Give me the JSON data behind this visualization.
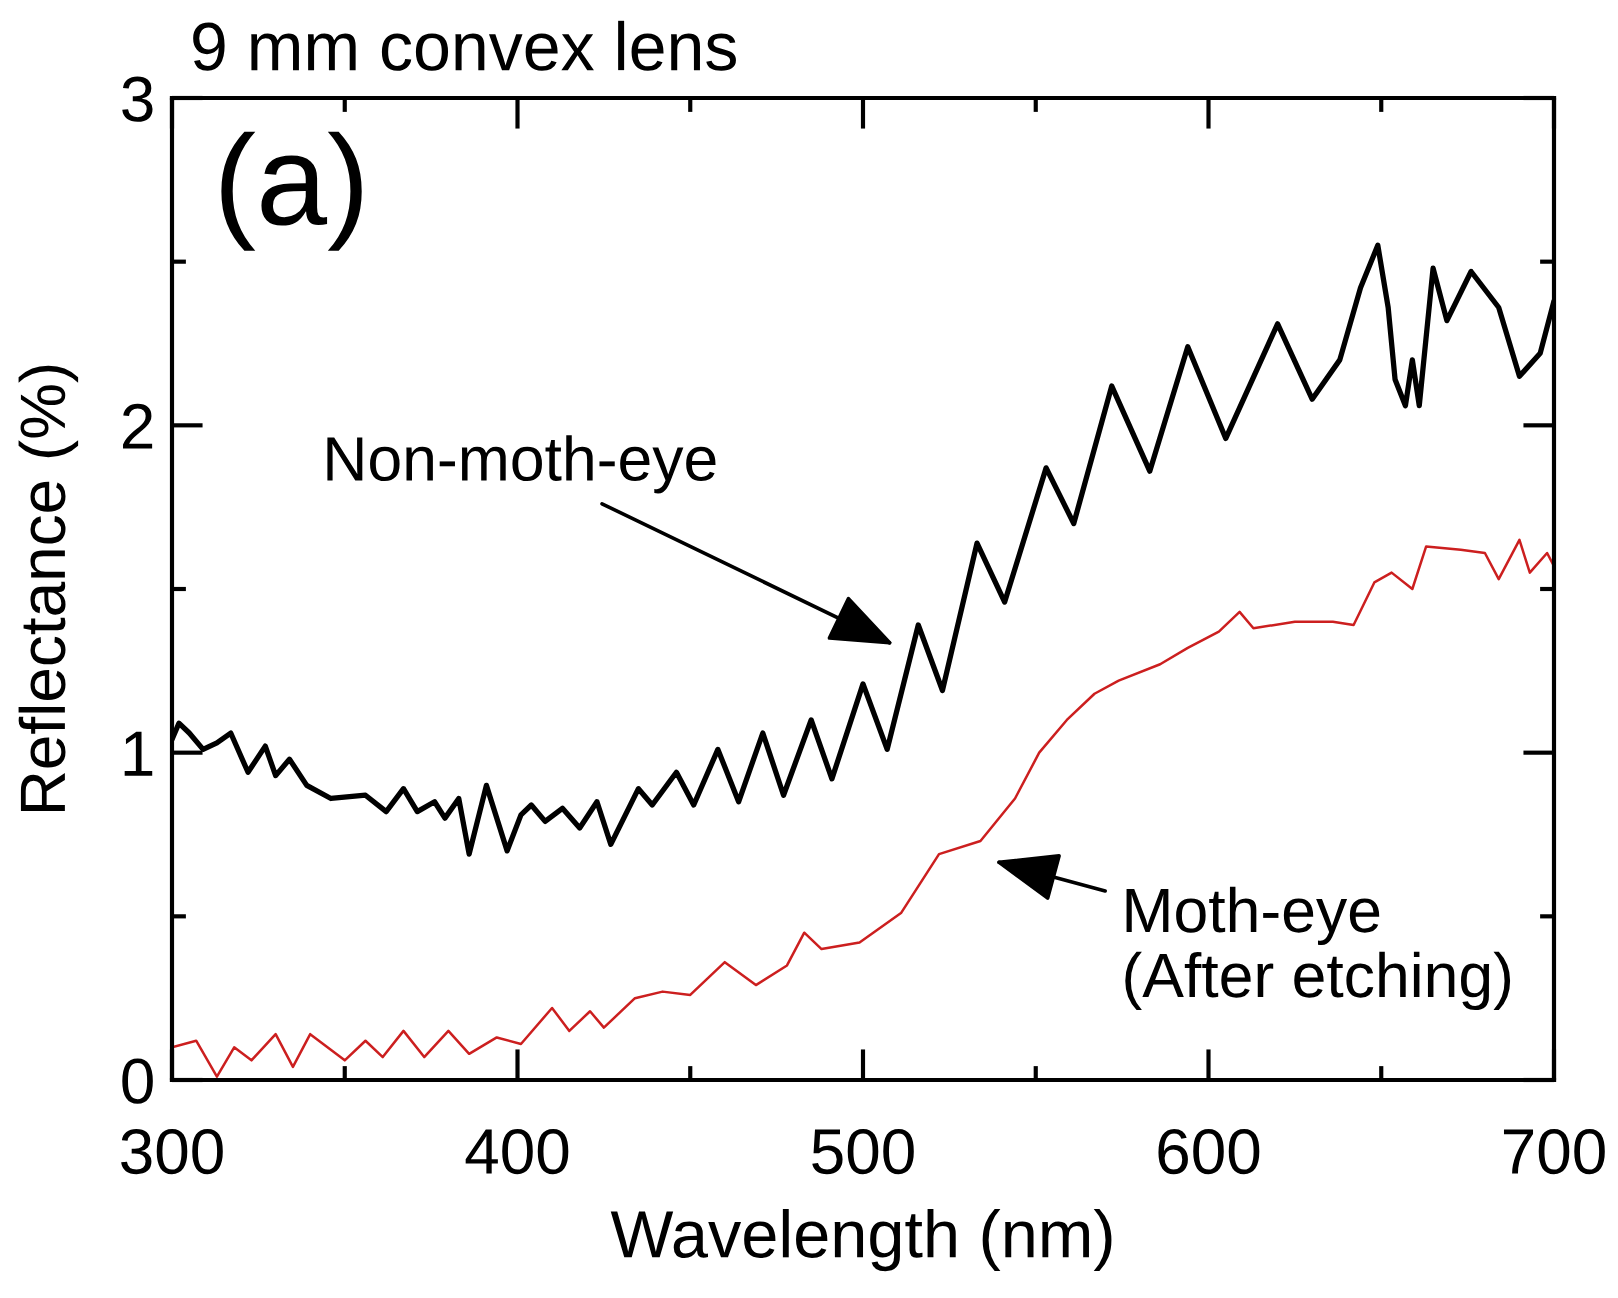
{
  "chart_data": {
    "type": "line",
    "title": "9 mm convex lens",
    "xlabel": "Wavelength (nm)",
    "ylabel": "Reflectance (%)",
    "xlim": [
      300,
      700
    ],
    "xticks": [
      300,
      {
        "value": 350,
        "label": null
      },
      400,
      {
        "value": 450,
        "label": null
      },
      500,
      {
        "value": 550,
        "label": null
      },
      600,
      {
        "value": 650,
        "label": null
      },
      700
    ],
    "ylim": [
      0,
      3
    ],
    "yticks": [
      0,
      {
        "value": 0.5,
        "label": null
      },
      1,
      {
        "value": 1.5,
        "label": null
      },
      2,
      {
        "value": 2.5,
        "label": null
      },
      3
    ],
    "series": [
      {
        "color": "#000000",
        "x": [
          300,
          302,
          305,
          309,
          313,
          317,
          322,
          327,
          330,
          334,
          339,
          346,
          356,
          362,
          367,
          371,
          376,
          379,
          383,
          386,
          391,
          397,
          401,
          404,
          408,
          413,
          418,
          423,
          427,
          435,
          439,
          446,
          451,
          458,
          464,
          471,
          477,
          485,
          491,
          500,
          507,
          516,
          523,
          533,
          541,
          553,
          561,
          572,
          583,
          594,
          605,
          620,
          630,
          638,
          644,
          649,
          652,
          654,
          657,
          659,
          661,
          665,
          669,
          676,
          684,
          690,
          696,
          700
        ],
        "values": [
          1.04,
          1.09,
          1.06,
          1.01,
          1.03,
          1.06,
          0.94,
          1.02,
          0.93,
          0.98,
          0.9,
          0.86,
          0.87,
          0.82,
          0.89,
          0.82,
          0.85,
          0.8,
          0.86,
          0.69,
          0.9,
          0.7,
          0.81,
          0.84,
          0.79,
          0.83,
          0.77,
          0.85,
          0.72,
          0.89,
          0.84,
          0.94,
          0.84,
          1.01,
          0.85,
          1.06,
          0.87,
          1.1,
          0.92,
          1.21,
          1.01,
          1.39,
          1.19,
          1.64,
          1.46,
          1.87,
          1.7,
          2.12,
          1.86,
          2.24,
          1.96,
          2.31,
          2.08,
          2.2,
          2.42,
          2.55,
          2.36,
          2.14,
          2.06,
          2.2,
          2.06,
          2.48,
          2.32,
          2.47,
          2.36,
          2.15,
          2.22,
          2.38
        ]
      },
      {
        "color": "#cc1f1f",
        "x": [
          300,
          307,
          313,
          318,
          323,
          330,
          335,
          340,
          350,
          356,
          361,
          367,
          373,
          380,
          386,
          394,
          401,
          410,
          415,
          421,
          425,
          434,
          442,
          450,
          460,
          469,
          478,
          483,
          488,
          499,
          511,
          522,
          534,
          544,
          551,
          559,
          567,
          574,
          586,
          594,
          603,
          609,
          613,
          625,
          636,
          642,
          648,
          653,
          659,
          663,
          673,
          680,
          684,
          690,
          693,
          698,
          700
        ],
        "values": [
          0.1,
          0.12,
          0.01,
          0.1,
          0.06,
          0.14,
          0.04,
          0.14,
          0.06,
          0.12,
          0.07,
          0.15,
          0.07,
          0.15,
          0.08,
          0.13,
          0.11,
          0.22,
          0.15,
          0.21,
          0.16,
          0.25,
          0.27,
          0.26,
          0.36,
          0.29,
          0.35,
          0.45,
          0.4,
          0.42,
          0.51,
          0.69,
          0.73,
          0.86,
          1.0,
          1.1,
          1.18,
          1.22,
          1.27,
          1.32,
          1.37,
          1.43,
          1.38,
          1.4,
          1.4,
          1.39,
          1.52,
          1.55,
          1.5,
          1.63,
          1.62,
          1.61,
          1.53,
          1.65,
          1.55,
          1.61,
          1.57
        ]
      }
    ],
    "annotations": [
      "(a)",
      "Non-moth-eye",
      "Moth-eye\n(After etching)"
    ]
  }
}
